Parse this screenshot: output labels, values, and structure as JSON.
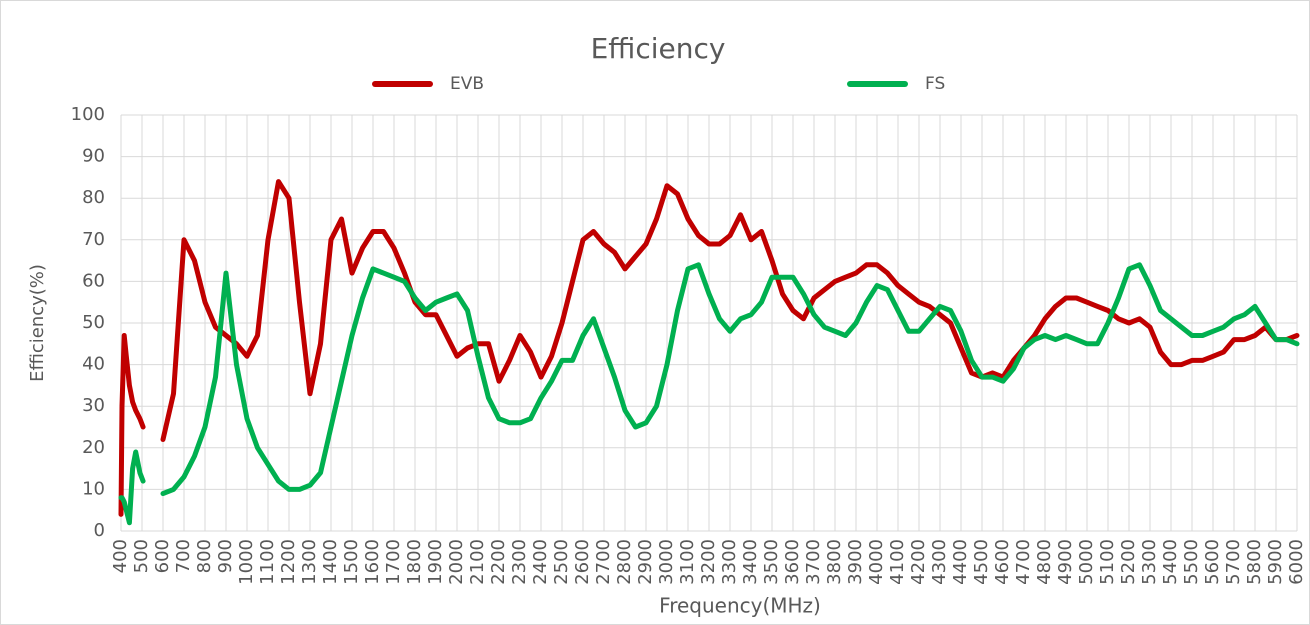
{
  "chart_data": {
    "type": "line",
    "title": "Efficiency",
    "xlabel": "Frequency(MHz)",
    "ylabel": "Efficiency(%)",
    "x": [
      400,
      405,
      415,
      425,
      440,
      455,
      470,
      490,
      505,
      550,
      600,
      650,
      700,
      750,
      800,
      850,
      900,
      950,
      1000,
      1050,
      1100,
      1150,
      1200,
      1250,
      1300,
      1350,
      1400,
      1450,
      1500,
      1550,
      1600,
      1650,
      1700,
      1750,
      1800,
      1850,
      1900,
      1950,
      2000,
      2050,
      2100,
      2150,
      2200,
      2250,
      2300,
      2350,
      2400,
      2450,
      2500,
      2550,
      2600,
      2650,
      2700,
      2750,
      2800,
      2850,
      2900,
      2950,
      3000,
      3050,
      3100,
      3150,
      3200,
      3250,
      3300,
      3350,
      3400,
      3450,
      3500,
      3550,
      3600,
      3650,
      3700,
      3750,
      3800,
      3850,
      3900,
      3950,
      4000,
      4050,
      4100,
      4150,
      4200,
      4250,
      4300,
      4350,
      4400,
      4450,
      4500,
      4550,
      4600,
      4650,
      4700,
      4750,
      4800,
      4850,
      4900,
      4950,
      5000,
      5050,
      5100,
      5150,
      5200,
      5250,
      5300,
      5350,
      5400,
      5450,
      5500,
      5550,
      5600,
      5650,
      5700,
      5750,
      5800,
      5850,
      5900,
      5950,
      6000
    ],
    "series": [
      {
        "name": "EVB",
        "color": "#c00000",
        "values": [
          4,
          30,
          47,
          42,
          35,
          31,
          29,
          27,
          25,
          null,
          22,
          33,
          70,
          65,
          55,
          49,
          47,
          45,
          42,
          47,
          70,
          84,
          80,
          55,
          33,
          45,
          70,
          75,
          62,
          68,
          72,
          72,
          68,
          62,
          55,
          52,
          52,
          47,
          42,
          44,
          45,
          45,
          36,
          41,
          47,
          43,
          37,
          42,
          50,
          60,
          70,
          72,
          69,
          67,
          63,
          66,
          69,
          75,
          83,
          81,
          75,
          71,
          69,
          69,
          71,
          76,
          70,
          72,
          65,
          57,
          53,
          51,
          56,
          58,
          60,
          61,
          62,
          64,
          64,
          62,
          59,
          57,
          55,
          54,
          52,
          50,
          44,
          38,
          37,
          38,
          37,
          41,
          44,
          47,
          51,
          54,
          56,
          56,
          55,
          54,
          53,
          51,
          50,
          51,
          49,
          43,
          40,
          40,
          41,
          41,
          42,
          43,
          46,
          46,
          47,
          49,
          46,
          46,
          47
        ]
      },
      {
        "name": "FS",
        "color": "#00b050",
        "values": [
          8,
          8,
          7,
          5,
          2,
          15,
          19,
          14,
          12,
          null,
          9,
          10,
          13,
          18,
          25,
          37,
          62,
          40,
          27,
          20,
          16,
          12,
          10,
          10,
          11,
          14,
          25,
          36,
          47,
          56,
          63,
          62,
          61,
          60,
          56,
          53,
          55,
          56,
          57,
          53,
          42,
          32,
          27,
          26,
          26,
          27,
          32,
          36,
          41,
          41,
          47,
          51,
          44,
          37,
          29,
          25,
          26,
          30,
          40,
          53,
          63,
          64,
          57,
          51,
          48,
          51,
          52,
          55,
          61,
          61,
          61,
          57,
          52,
          49,
          48,
          47,
          50,
          55,
          59,
          58,
          53,
          48,
          48,
          51,
          54,
          53,
          48,
          41,
          37,
          37,
          36,
          39,
          44,
          46,
          47,
          46,
          47,
          46,
          45,
          45,
          50,
          56,
          63,
          64,
          59,
          53,
          51,
          49,
          47,
          47,
          48,
          49,
          51,
          52,
          54,
          50,
          46,
          46,
          45
        ]
      }
    ],
    "xlim": [
      400,
      6000
    ],
    "xticks": [
      400,
      500,
      600,
      700,
      800,
      900,
      1000,
      1100,
      1200,
      1300,
      1400,
      1500,
      1600,
      1700,
      1800,
      1900,
      2000,
      2100,
      2200,
      2300,
      2400,
      2500,
      2600,
      2700,
      2800,
      2900,
      3000,
      3100,
      3200,
      3300,
      3400,
      3500,
      3600,
      3700,
      3800,
      3900,
      4000,
      4100,
      4200,
      4300,
      4400,
      4500,
      4600,
      4700,
      4800,
      4900,
      5000,
      5100,
      5200,
      5300,
      5400,
      5500,
      5600,
      5700,
      5800,
      5900,
      6000
    ],
    "ylim": [
      0,
      100
    ],
    "yticks": [
      0,
      10,
      20,
      30,
      40,
      50,
      60,
      70,
      80,
      90,
      100
    ],
    "grid": true,
    "legend": "top"
  }
}
